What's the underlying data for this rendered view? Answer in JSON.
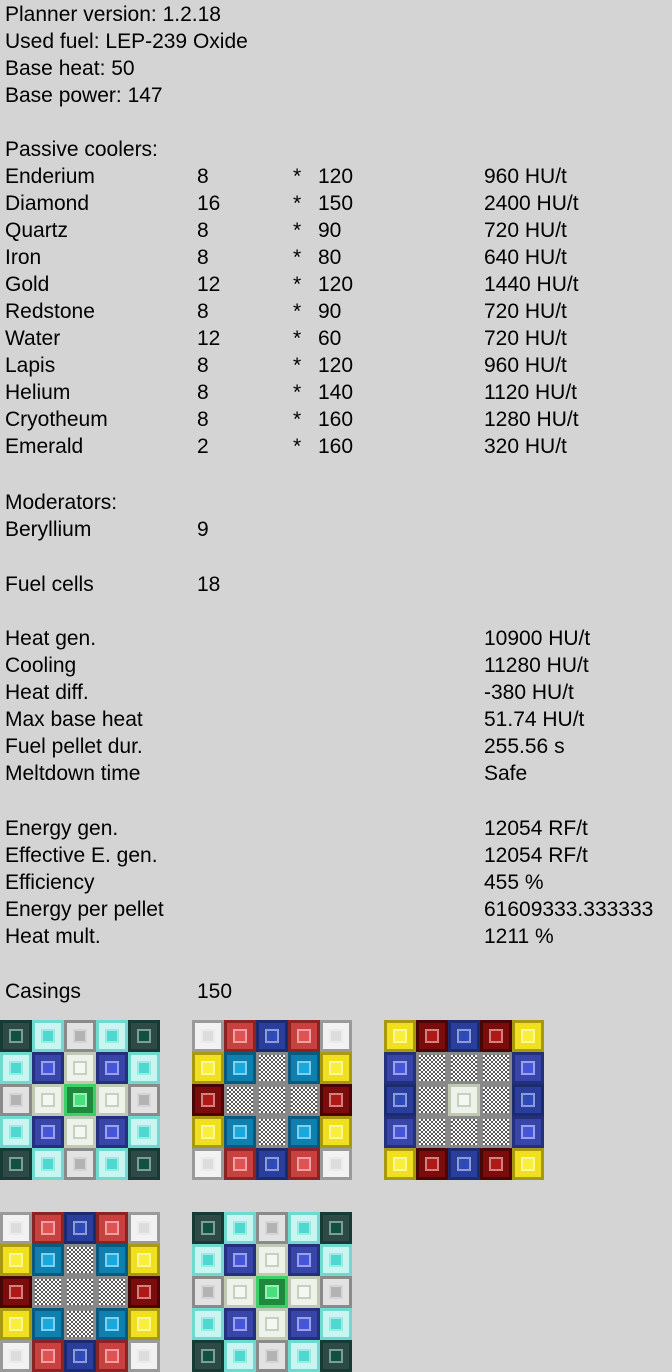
{
  "header": {
    "version": "Planner version: 1.2.18",
    "fuel": "Used fuel: LEP-239 Oxide",
    "base_heat": "Base heat: 50",
    "base_power": "Base power: 147"
  },
  "coolers": {
    "title": "Passive coolers:",
    "rows": [
      {
        "name": "Enderium",
        "count": "8",
        "op": "*",
        "rate": "120",
        "total": "960 HU/t"
      },
      {
        "name": "Diamond",
        "count": "16",
        "op": "*",
        "rate": "150",
        "total": "2400 HU/t"
      },
      {
        "name": "Quartz",
        "count": "8",
        "op": "*",
        "rate": "90",
        "total": "720 HU/t"
      },
      {
        "name": "Iron",
        "count": "8",
        "op": "*",
        "rate": "80",
        "total": "640 HU/t"
      },
      {
        "name": "Gold",
        "count": "12",
        "op": "*",
        "rate": "120",
        "total": "1440 HU/t"
      },
      {
        "name": "Redstone",
        "count": "8",
        "op": "*",
        "rate": "90",
        "total": "720 HU/t"
      },
      {
        "name": "Water",
        "count": "12",
        "op": "*",
        "rate": "60",
        "total": "720 HU/t"
      },
      {
        "name": "Lapis",
        "count": "8",
        "op": "*",
        "rate": "120",
        "total": "960 HU/t"
      },
      {
        "name": "Helium",
        "count": "8",
        "op": "*",
        "rate": "140",
        "total": "1120 HU/t"
      },
      {
        "name": "Cryotheum",
        "count": "8",
        "op": "*",
        "rate": "160",
        "total": "1280 HU/t"
      },
      {
        "name": "Emerald",
        "count": "2",
        "op": "*",
        "rate": "160",
        "total": "320 HU/t"
      }
    ]
  },
  "moderators": {
    "title": "Moderators:",
    "name": "Beryllium",
    "count": "9"
  },
  "fuel_cells": {
    "label": "Fuel cells",
    "count": "18"
  },
  "heat": [
    {
      "label": "Heat gen.",
      "value": "10900 HU/t"
    },
    {
      "label": "Cooling",
      "value": "11280 HU/t"
    },
    {
      "label": "Heat diff.",
      "value": "-380 HU/t"
    },
    {
      "label": "Max base heat",
      "value": "51.74 HU/t"
    },
    {
      "label": "Fuel pellet dur.",
      "value": "255.56 s"
    },
    {
      "label": "Meltdown time",
      "value": "Safe"
    }
  ],
  "energy": [
    {
      "label": "Energy  gen.",
      "value": "12054 RF/t"
    },
    {
      "label": "Effective E. gen.",
      "value": "12054 RF/t"
    },
    {
      "label": "Efficiency",
      "value": "455 %"
    },
    {
      "label": "Energy per pellet",
      "value": "61609333.333333"
    },
    {
      "label": "Heat mult.",
      "value": "1211 %"
    }
  ],
  "casings": {
    "label": "Casings",
    "count": "150"
  },
  "layers": [
    [
      "E",
      "D",
      "I",
      "D",
      "E",
      "D",
      "L",
      "B",
      "L",
      "D",
      "I",
      "B",
      "M",
      "B",
      "I",
      "D",
      "L",
      "B",
      "L",
      "D",
      "E",
      "D",
      "I",
      "D",
      "E"
    ],
    [
      "Q",
      "R",
      "W",
      "R",
      "Q",
      "G",
      "H",
      "C",
      "H",
      "G",
      "Y",
      "C",
      "C",
      "C",
      "Y",
      "G",
      "H",
      "C",
      "H",
      "G",
      "Q",
      "R",
      "W",
      "R",
      "Q"
    ],
    [
      "G",
      "Y",
      "W",
      "Y",
      "G",
      "L",
      "C",
      "C",
      "C",
      "L",
      "W",
      "C",
      "B",
      "C",
      "W",
      "L",
      "C",
      "C",
      "C",
      "L",
      "G",
      "Y",
      "W",
      "Y",
      "G"
    ],
    [
      "Q",
      "R",
      "W",
      "R",
      "Q",
      "G",
      "H",
      "C",
      "H",
      "G",
      "Y",
      "C",
      "C",
      "C",
      "Y",
      "G",
      "H",
      "C",
      "H",
      "G",
      "Q",
      "R",
      "W",
      "R",
      "Q"
    ],
    [
      "E",
      "D",
      "I",
      "D",
      "E",
      "D",
      "L",
      "B",
      "L",
      "D",
      "I",
      "B",
      "M",
      "B",
      "I",
      "D",
      "L",
      "B",
      "L",
      "D",
      "E",
      "D",
      "I",
      "D",
      "E"
    ]
  ]
}
